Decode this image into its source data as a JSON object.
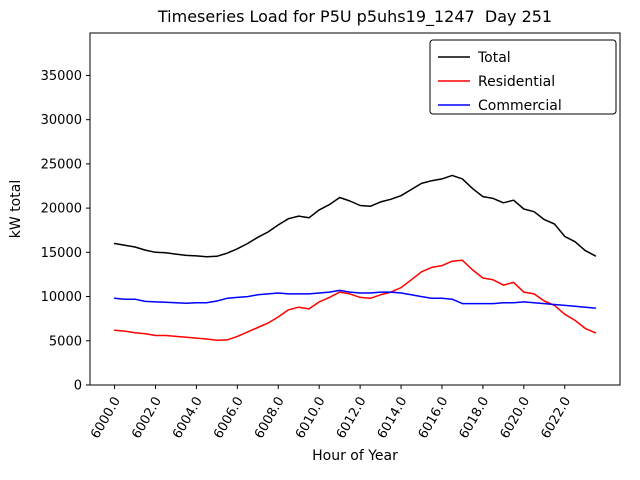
{
  "chart_data": {
    "type": "line",
    "title": "Timeseries Load for P5U p5uhs19_1247  Day 251",
    "xlabel": "Hour of Year",
    "ylabel": "kW total",
    "xlim": [
      5998.8,
      6024.7
    ],
    "ylim": [
      0,
      39800
    ],
    "grid": false,
    "legend_position": "upper right",
    "xticks": [
      {
        "value": 6000,
        "label": "6000.0"
      },
      {
        "value": 6002,
        "label": "6002.0"
      },
      {
        "value": 6004,
        "label": "6004.0"
      },
      {
        "value": 6006,
        "label": "6006.0"
      },
      {
        "value": 6008,
        "label": "6008.0"
      },
      {
        "value": 6010,
        "label": "6010.0"
      },
      {
        "value": 6012,
        "label": "6012.0"
      },
      {
        "value": 6014,
        "label": "6014.0"
      },
      {
        "value": 6016,
        "label": "6016.0"
      },
      {
        "value": 6018,
        "label": "6018.0"
      },
      {
        "value": 6020,
        "label": "6020.0"
      },
      {
        "value": 6022,
        "label": "6022.0"
      }
    ],
    "yticks": [
      {
        "value": 0,
        "label": "0"
      },
      {
        "value": 5000,
        "label": "5000"
      },
      {
        "value": 10000,
        "label": "10000"
      },
      {
        "value": 15000,
        "label": "15000"
      },
      {
        "value": 20000,
        "label": "20000"
      },
      {
        "value": 25000,
        "label": "25000"
      },
      {
        "value": 30000,
        "label": "30000"
      },
      {
        "value": 35000,
        "label": "35000"
      }
    ],
    "x": [
      6000,
      6000.5,
      6001,
      6001.5,
      6002,
      6002.5,
      6003,
      6003.5,
      6004,
      6004.5,
      6005,
      6005.5,
      6006,
      6006.5,
      6007,
      6007.5,
      6008,
      6008.5,
      6009,
      6009.5,
      6010,
      6010.5,
      6011,
      6011.5,
      6012,
      6012.5,
      6013,
      6013.5,
      6014,
      6014.5,
      6015,
      6015.5,
      6016,
      6016.5,
      6017,
      6017.5,
      6018,
      6018.5,
      6019,
      6019.5,
      6020,
      6020.5,
      6021,
      6021.5,
      6022,
      6022.5,
      6023,
      6023.5
    ],
    "series": [
      {
        "name": "Total",
        "color": "#000000",
        "y": [
          16000,
          15800,
          15600,
          15250,
          15000,
          14950,
          14800,
          14650,
          14600,
          14500,
          14550,
          14900,
          15400,
          16000,
          16700,
          17300,
          18100,
          18800,
          19100,
          18900,
          19800,
          20400,
          21200,
          20800,
          20300,
          20200,
          20700,
          21000,
          21400,
          22100,
          22800,
          23100,
          23300,
          23700,
          23300,
          22200,
          21300,
          21100,
          20600,
          20900,
          19900,
          19600,
          18700,
          18200,
          16800,
          16200,
          15200,
          14600
        ]
      },
      {
        "name": "Residential",
        "color": "#ff0000",
        "y": [
          6200,
          6100,
          5900,
          5800,
          5600,
          5600,
          5500,
          5400,
          5300,
          5200,
          5050,
          5100,
          5500,
          6000,
          6500,
          7000,
          7700,
          8500,
          8800,
          8600,
          9400,
          9900,
          10500,
          10300,
          9900,
          9800,
          10200,
          10500,
          11000,
          11900,
          12800,
          13300,
          13500,
          14000,
          14100,
          13000,
          12100,
          11900,
          11300,
          11600,
          10500,
          10300,
          9500,
          9000,
          8000,
          7300,
          6400,
          5900
        ]
      },
      {
        "name": "Commercial",
        "color": "#0000ff",
        "y": [
          9800,
          9700,
          9700,
          9450,
          9400,
          9350,
          9300,
          9250,
          9300,
          9300,
          9500,
          9800,
          9900,
          10000,
          10200,
          10300,
          10400,
          10300,
          10300,
          10300,
          10400,
          10500,
          10700,
          10500,
          10400,
          10400,
          10500,
          10500,
          10400,
          10200,
          10000,
          9800,
          9800,
          9700,
          9200,
          9200,
          9200,
          9200,
          9300,
          9300,
          9400,
          9300,
          9200,
          9100,
          9000,
          8900,
          8800,
          8700
        ]
      }
    ]
  }
}
